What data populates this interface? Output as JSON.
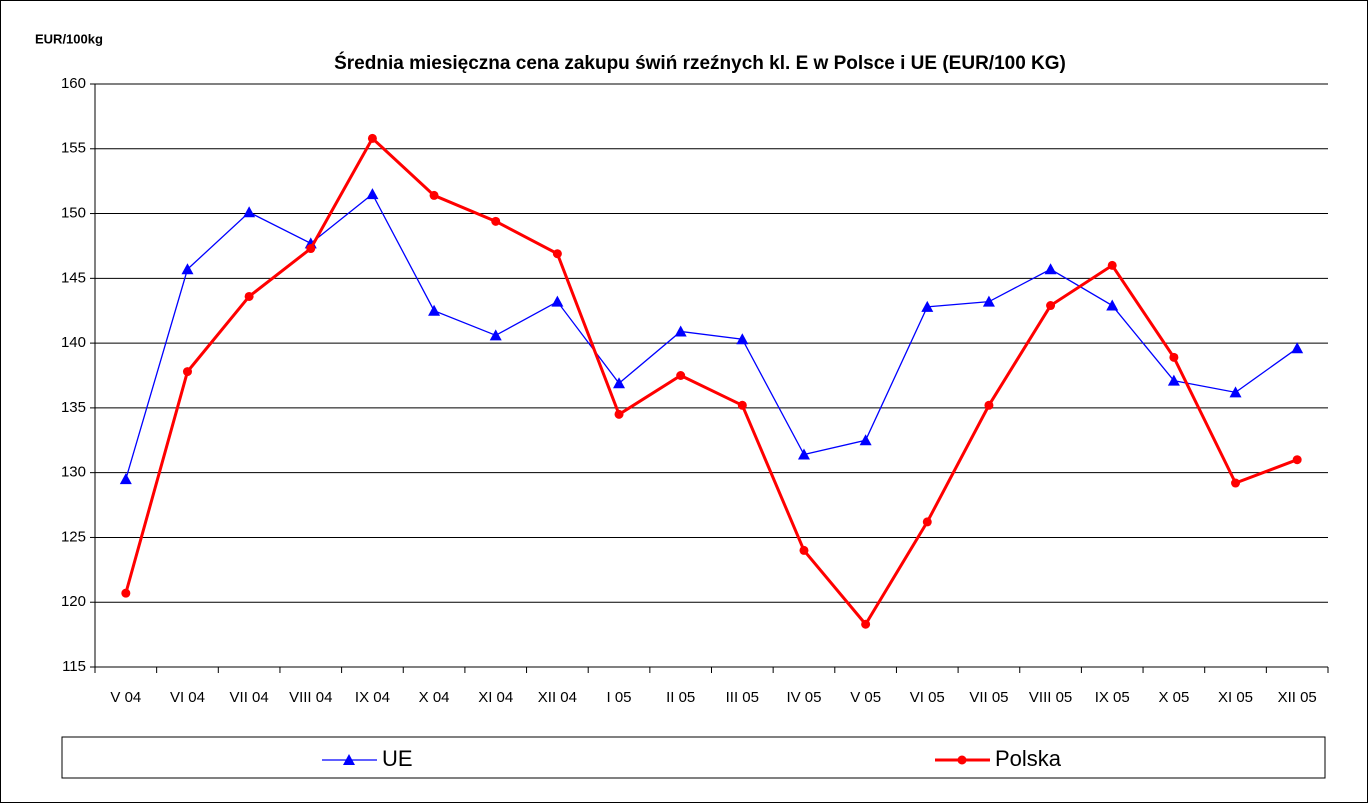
{
  "chart_data": {
    "type": "line",
    "title": "Średnia miesięczna cena zakupu świń rzeźnych kl. E w  Polsce i UE (EUR/100 KG)",
    "y_label": "EUR/100kg",
    "categories": [
      "V 04",
      "VI 04",
      "VII 04",
      "VIII 04",
      "IX 04",
      "X 04",
      "XI 04",
      "XII 04",
      "I 05",
      "II 05",
      "III 05",
      "IV 05",
      "V 05",
      "VI 05",
      "VII 05",
      "VIII 05",
      "IX 05",
      "X 05",
      "XI 05",
      "XII 05"
    ],
    "series": [
      {
        "name": "UE",
        "color": "#0000ff",
        "marker": "triangle",
        "values": [
          129.5,
          145.7,
          150.1,
          147.7,
          151.5,
          142.5,
          140.6,
          143.2,
          136.9,
          140.9,
          140.3,
          131.4,
          132.5,
          142.8,
          143.2,
          145.7,
          142.9,
          137.1,
          136.2,
          139.6
        ]
      },
      {
        "name": "Polska",
        "color": "#ff0000",
        "marker": "circle",
        "values": [
          120.7,
          137.8,
          143.6,
          147.3,
          155.8,
          151.4,
          149.4,
          146.9,
          134.5,
          137.5,
          135.2,
          124.0,
          118.3,
          126.2,
          135.2,
          142.9,
          146.0,
          138.9,
          129.2,
          131.0
        ]
      }
    ],
    "ylim": [
      115,
      160
    ],
    "yticks": [
      115,
      120,
      125,
      130,
      135,
      140,
      145,
      150,
      155,
      160
    ],
    "grid": true
  }
}
